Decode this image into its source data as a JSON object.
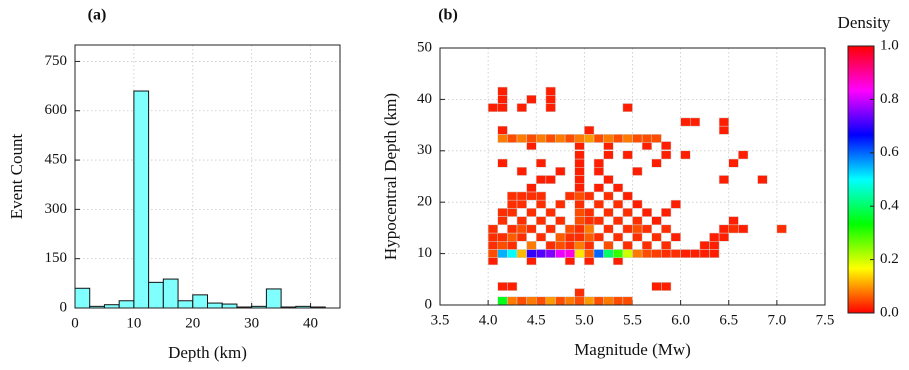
{
  "chart_data": [
    {
      "type": "histogram",
      "label": "(a)",
      "xlabel": "Depth (km)",
      "ylabel": "Event Count",
      "bins": [
        0,
        2.5,
        5,
        7.5,
        10,
        12.5,
        15,
        17.5,
        20,
        22.5,
        25,
        27.5,
        30,
        32.5,
        35,
        37.5,
        40,
        42.5
      ],
      "counts": [
        60,
        5,
        10,
        22,
        660,
        78,
        88,
        22,
        40,
        15,
        12,
        3,
        5,
        58,
        3,
        5,
        3
      ],
      "color": "#80ffff",
      "xlim": [
        0,
        45
      ],
      "xticks": [
        0,
        10,
        20,
        30,
        40
      ],
      "ylim": [
        0,
        800
      ],
      "yticks": [
        0,
        150,
        300,
        450,
        600,
        750
      ],
      "grid": true
    },
    {
      "type": "heatmap",
      "label": "(b)",
      "xlabel": "Magnitude (Mw)",
      "ylabel": "Hypocentral Depth (km)",
      "x": [
        4.15,
        4.25,
        4.35,
        4.45,
        4.55,
        4.65,
        4.75,
        4.85,
        4.95,
        5.05,
        5.15,
        5.25,
        5.35,
        5.45,
        4.95,
        4.15,
        4.25,
        5.75,
        5.85,
        4.05,
        4.45,
        4.85,
        5.05,
        5.35,
        4.05,
        4.15,
        4.25,
        4.35,
        4.45,
        4.55,
        4.65,
        4.75,
        4.85,
        4.95,
        5.05,
        5.15,
        5.25,
        5.35,
        5.45,
        5.55,
        5.65,
        5.75,
        5.85,
        5.95,
        6.05,
        6.15,
        6.25,
        6.35,
        4.05,
        4.15,
        4.25,
        4.45,
        4.65,
        4.75,
        4.85,
        4.95,
        5.05,
        5.25,
        5.45,
        5.65,
        5.85,
        6.25,
        6.35,
        4.05,
        4.15,
        4.25,
        4.35,
        4.55,
        4.75,
        4.85,
        4.95,
        5.05,
        5.15,
        5.35,
        5.55,
        5.75,
        5.95,
        6.35,
        6.45,
        4.05,
        4.25,
        4.35,
        4.45,
        4.65,
        4.85,
        4.95,
        5.05,
        5.25,
        5.45,
        5.55,
        5.65,
        5.85,
        6.45,
        6.55,
        6.65,
        7.05,
        4.15,
        4.35,
        4.55,
        4.75,
        4.95,
        5.05,
        5.15,
        5.35,
        5.55,
        5.75,
        6.55,
        4.15,
        4.25,
        4.45,
        4.65,
        4.95,
        5.05,
        5.25,
        5.45,
        5.65,
        5.85,
        4.25,
        4.35,
        4.55,
        4.75,
        4.95,
        5.15,
        5.35,
        5.55,
        5.95,
        4.25,
        4.35,
        4.45,
        4.55,
        4.85,
        4.95,
        5.05,
        5.25,
        5.45,
        4.45,
        4.95,
        5.15,
        5.35,
        4.55,
        4.65,
        4.95,
        5.25,
        6.45,
        6.85,
        4.35,
        4.75,
        4.95,
        5.15,
        5.55,
        4.15,
        4.55,
        4.95,
        5.15,
        5.75,
        6.55,
        4.95,
        5.25,
        5.45,
        5.85,
        6.05,
        6.65,
        4.45,
        4.95,
        5.25,
        5.65,
        5.85,
        4.15,
        4.25,
        4.35,
        4.45,
        4.55,
        4.65,
        4.75,
        4.85,
        4.95,
        5.05,
        5.15,
        5.25,
        5.35,
        5.45,
        5.55,
        5.65,
        5.75,
        4.15,
        5.05,
        6.45,
        6.05,
        6.15,
        6.45,
        4.05,
        4.15,
        4.35,
        4.65,
        5.45,
        4.15,
        4.45,
        4.65,
        4.15,
        4.65
      ],
      "y": [
        0.8,
        0.8,
        0.8,
        0.8,
        0.8,
        0.8,
        0.8,
        0.8,
        0.8,
        0.8,
        0.8,
        0.8,
        0.8,
        0.8,
        2.4,
        3.6,
        3.6,
        3.6,
        3.6,
        8.6,
        8.6,
        8.6,
        8.6,
        8.6,
        10,
        10,
        10,
        10,
        10,
        10,
        10,
        10,
        10,
        10,
        10,
        10,
        10,
        10,
        10,
        10,
        10,
        10,
        10,
        10,
        10,
        10,
        10,
        10,
        11.6,
        11.6,
        11.6,
        11.6,
        11.6,
        11.6,
        11.6,
        11.6,
        11.6,
        11.6,
        11.6,
        11.6,
        11.6,
        11.6,
        11.6,
        13.2,
        13.2,
        13.2,
        13.2,
        13.2,
        13.2,
        13.2,
        13.2,
        13.2,
        13.2,
        13.2,
        13.2,
        13.2,
        13.2,
        13.2,
        13.2,
        14.8,
        14.8,
        14.8,
        14.8,
        14.8,
        14.8,
        14.8,
        14.8,
        14.8,
        14.8,
        14.8,
        14.8,
        14.8,
        14.8,
        14.8,
        14.8,
        14.8,
        16.4,
        16.4,
        16.4,
        16.4,
        16.4,
        16.4,
        16.4,
        16.4,
        16.4,
        16.4,
        16.4,
        18,
        18,
        18,
        18,
        18,
        18,
        18,
        18,
        18,
        18,
        19.6,
        19.6,
        19.6,
        19.6,
        19.6,
        19.6,
        19.6,
        19.6,
        19.6,
        21.2,
        21.2,
        21.2,
        21.2,
        21.2,
        21.2,
        21.2,
        21.2,
        21.2,
        22.8,
        22.8,
        22.8,
        22.8,
        24.4,
        24.4,
        24.4,
        24.4,
        24.4,
        24.4,
        26,
        26,
        26,
        26,
        26,
        27.6,
        27.6,
        27.6,
        27.6,
        27.6,
        27.6,
        29.2,
        29.2,
        29.2,
        29.2,
        29.2,
        29.2,
        31,
        31,
        31,
        31,
        31,
        32.4,
        32.4,
        32.4,
        32.4,
        32.4,
        32.4,
        32.4,
        32.4,
        32.4,
        32.4,
        32.4,
        32.4,
        32.4,
        32.4,
        32.4,
        32.4,
        32.4,
        34,
        34,
        34,
        35.6,
        35.6,
        35.6,
        38.4,
        38.4,
        38.4,
        38.4,
        38.4,
        40,
        40,
        40,
        41.6,
        41.6
      ],
      "values": [
        0.35,
        0.08,
        0.05,
        0.08,
        0.05,
        0.1,
        0.05,
        0.08,
        0.05,
        0.1,
        0.05,
        0.08,
        0.05,
        0.05,
        0.03,
        0.02,
        0.02,
        0.02,
        0.02,
        0.02,
        0.02,
        0.02,
        0.02,
        0.02,
        0.05,
        0.55,
        0.5,
        0.12,
        0.7,
        0.72,
        0.75,
        0.82,
        0.85,
        0.15,
        0.06,
        0.6,
        0.4,
        0.3,
        0.2,
        0.08,
        0.05,
        0.04,
        0.03,
        0.03,
        0.02,
        0.02,
        0.02,
        0.02,
        0.03,
        0.05,
        0.03,
        0.08,
        0.03,
        0.05,
        0.03,
        0.08,
        0.03,
        0.05,
        0.03,
        0.03,
        0.03,
        0.02,
        0.02,
        0.03,
        0.03,
        0.06,
        0.03,
        0.03,
        0.06,
        0.03,
        0.03,
        0.06,
        0.03,
        0.03,
        0.03,
        0.03,
        0.02,
        0.02,
        0.02,
        0.03,
        0.03,
        0.05,
        0.03,
        0.03,
        0.05,
        0.03,
        0.08,
        0.03,
        0.03,
        0.05,
        0.03,
        0.03,
        0.02,
        0.03,
        0.02,
        0.03,
        0.03,
        0.03,
        0.03,
        0.03,
        0.05,
        0.03,
        0.03,
        0.03,
        0.03,
        0.02,
        0.02,
        0.03,
        0.03,
        0.03,
        0.03,
        0.05,
        0.03,
        0.03,
        0.03,
        0.02,
        0.02,
        0.03,
        0.03,
        0.03,
        0.03,
        0.03,
        0.03,
        0.03,
        0.02,
        0.02,
        0.03,
        0.03,
        0.03,
        0.03,
        0.03,
        0.05,
        0.03,
        0.03,
        0.02,
        0.02,
        0.02,
        0.02,
        0.02,
        0.02,
        0.02,
        0.02,
        0.02,
        0.02,
        0.02,
        0.02,
        0.02,
        0.02,
        0.02,
        0.02,
        0.02,
        0.02,
        0.02,
        0.02,
        0.02,
        0.02,
        0.02,
        0.02,
        0.02,
        0.02,
        0.02,
        0.02,
        0.02,
        0.02,
        0.02,
        0.02,
        0.02,
        0.08,
        0.05,
        0.08,
        0.05,
        0.08,
        0.05,
        0.08,
        0.05,
        0.08,
        0.1,
        0.05,
        0.08,
        0.05,
        0.08,
        0.05,
        0.05,
        0.05,
        0.02,
        0.02,
        0.02,
        0.02,
        0.02,
        0.02,
        0.02,
        0.02,
        0.02,
        0.02,
        0.02,
        0.02,
        0.02,
        0.02,
        0.02,
        0.02
      ],
      "colormap": "hsv",
      "colorbar_label": "Density",
      "colorbar_lim": [
        0,
        1
      ],
      "colorbar_ticks": [
        {
          "value": 0,
          "label": "0.0"
        },
        {
          "value": 0.2,
          "label": "0.2"
        },
        {
          "value": 0.4,
          "label": "0.4"
        },
        {
          "value": 0.6,
          "label": "0.6"
        },
        {
          "value": 0.8,
          "label": "0.8"
        },
        {
          "value": 1,
          "label": "1.0"
        }
      ],
      "xlim": [
        3.5,
        7.5
      ],
      "xticks": [
        3.5,
        {
          "value": 4,
          "label": "4.0"
        },
        4.5,
        {
          "value": 5,
          "label": "5.0"
        },
        5.5,
        {
          "value": 6,
          "label": "6.0"
        },
        6.5,
        {
          "value": 7,
          "label": "7.0"
        },
        7.5
      ],
      "ylim": [
        0,
        50
      ],
      "yticks": [
        0,
        10,
        20,
        30,
        40,
        50
      ],
      "grid": true
    }
  ]
}
